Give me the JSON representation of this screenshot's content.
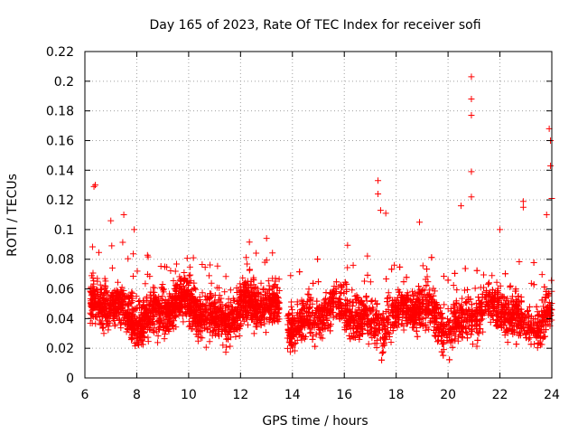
{
  "chart_data": {
    "type": "scatter",
    "title": "Day 165 of 2023, Rate Of TEC Index for receiver sofi",
    "xlabel": "GPS time / hours",
    "ylabel": "ROTI / TECUs",
    "xlim": [
      6,
      24
    ],
    "ylim": [
      0,
      0.22
    ],
    "xticks": [
      6,
      8,
      10,
      12,
      14,
      16,
      18,
      20,
      22,
      24
    ],
    "xtick_labels": [
      "6",
      "8",
      "10",
      "12",
      "14",
      "16",
      "18",
      "20",
      "22",
      "24"
    ],
    "yticks": [
      0,
      0.02,
      0.04,
      0.06,
      0.08,
      0.1,
      0.12,
      0.14,
      0.16,
      0.18,
      0.2,
      0.22
    ],
    "ytick_labels": [
      "0",
      "0.02",
      "0.04",
      "0.06",
      "0.08",
      "0.1",
      "0.12",
      "0.14",
      "0.16",
      "0.18",
      "0.2",
      "0.22"
    ],
    "grid": true,
    "marker": "+",
    "color": "#ff0000",
    "series": [
      {
        "name": "ROTI",
        "note": "dense cloud of points roughly 6.2-13.5 h and 13.8-24 h, mostly 0.02-0.08 TECU/s",
        "segments": [
          {
            "x_start": 6.2,
            "x_end": 13.5,
            "y_center": 0.045,
            "y_spread": 0.025
          },
          {
            "x_start": 13.8,
            "x_end": 24.0,
            "y_center": 0.042,
            "y_spread": 0.025
          }
        ],
        "outliers": [
          {
            "x": 6.35,
            "y": 0.129
          },
          {
            "x": 6.4,
            "y": 0.13
          },
          {
            "x": 7.0,
            "y": 0.106
          },
          {
            "x": 7.5,
            "y": 0.11
          },
          {
            "x": 7.9,
            "y": 0.1
          },
          {
            "x": 17.3,
            "y": 0.133
          },
          {
            "x": 17.3,
            "y": 0.124
          },
          {
            "x": 17.4,
            "y": 0.113
          },
          {
            "x": 17.6,
            "y": 0.111
          },
          {
            "x": 18.9,
            "y": 0.105
          },
          {
            "x": 20.5,
            "y": 0.116
          },
          {
            "x": 20.9,
            "y": 0.203
          },
          {
            "x": 20.9,
            "y": 0.188
          },
          {
            "x": 20.9,
            "y": 0.177
          },
          {
            "x": 20.9,
            "y": 0.139
          },
          {
            "x": 20.9,
            "y": 0.122
          },
          {
            "x": 22.0,
            "y": 0.1
          },
          {
            "x": 22.9,
            "y": 0.119
          },
          {
            "x": 22.9,
            "y": 0.115
          },
          {
            "x": 23.8,
            "y": 0.11
          },
          {
            "x": 23.9,
            "y": 0.168
          },
          {
            "x": 23.95,
            "y": 0.16
          },
          {
            "x": 23.95,
            "y": 0.143
          },
          {
            "x": 24.0,
            "y": 0.121
          }
        ]
      }
    ]
  }
}
